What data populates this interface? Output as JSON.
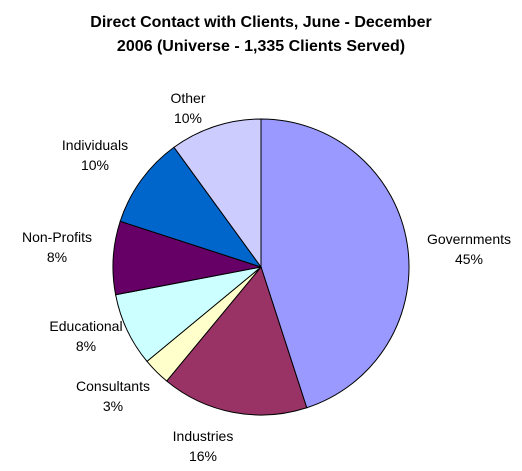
{
  "chart_data": {
    "type": "pie",
    "title_lines": [
      "Direct Contact with Clients, June - December",
      "2006 (Universe - 1,335 Clients Served)"
    ],
    "slices": [
      {
        "name": "Governments",
        "value": 45,
        "value_label": "45%",
        "color": "#9999FF"
      },
      {
        "name": "Industries",
        "value": 16,
        "value_label": "16%",
        "color": "#993366"
      },
      {
        "name": "Consultants",
        "value": 3,
        "value_label": "3%",
        "color": "#FFFFCC"
      },
      {
        "name": "Educational",
        "value": 8,
        "value_label": "8%",
        "color": "#CCFFFF"
      },
      {
        "name": "Non-Profits",
        "value": 8,
        "value_label": "8%",
        "color": "#660066"
      },
      {
        "name": "Individuals",
        "value": 10,
        "value_label": "10%",
        "color": "#0066CC"
      },
      {
        "name": "Other",
        "value": 10,
        "value_label": "10%",
        "color": "#CCCCFF"
      }
    ]
  }
}
